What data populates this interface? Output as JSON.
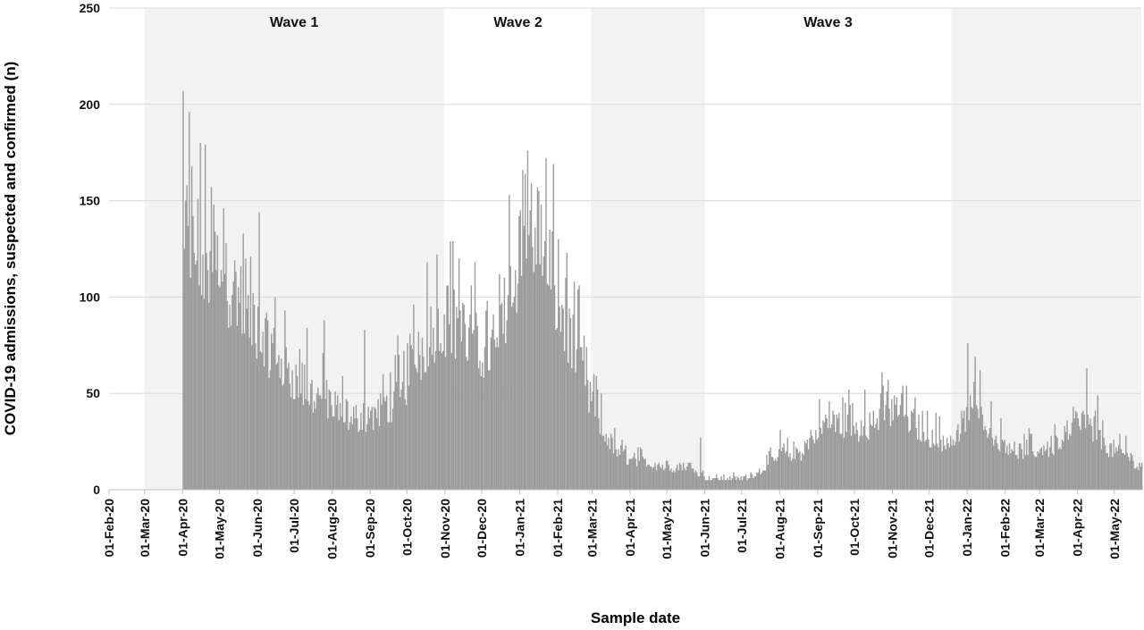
{
  "chart_data": {
    "type": "bar",
    "title": "",
    "xlabel": "Sample date",
    "ylabel": "COVID-19 admissions, suspected and confirmed (n)",
    "ylim": [
      0,
      250
    ],
    "yticks": [
      0,
      50,
      100,
      150,
      200,
      250
    ],
    "xlim": [
      "2020-02-01",
      "2022-05-23"
    ],
    "grid": "horizontal",
    "colors": {
      "bars": "#9a9a9a",
      "wave_band": "#f2f2f2",
      "grid": "#d9d9d9",
      "axis": "#bfbfbf"
    },
    "x_tick_dates": [
      "2020-02-01",
      "2020-03-01",
      "2020-04-01",
      "2020-05-01",
      "2020-06-01",
      "2020-07-01",
      "2020-08-01",
      "2020-09-01",
      "2020-10-01",
      "2020-11-01",
      "2020-12-01",
      "2021-01-01",
      "2021-02-01",
      "2021-03-01",
      "2021-04-01",
      "2021-05-01",
      "2021-06-01",
      "2021-07-01",
      "2021-08-01",
      "2021-09-01",
      "2021-10-01",
      "2021-11-01",
      "2021-12-01",
      "2022-01-01",
      "2022-02-01",
      "2022-03-01",
      "2022-04-01",
      "2022-05-01"
    ],
    "x_tick_labels": [
      "01-Feb-20",
      "01-Mar-20",
      "01-Apr-20",
      "01-May-20",
      "01-Jun-20",
      "01-Jul-20",
      "01-Aug-20",
      "01-Sep-20",
      "01-Oct-20",
      "01-Nov-20",
      "01-Dec-20",
      "01-Jan-21",
      "01-Feb-21",
      "01-Mar-21",
      "01-Apr-21",
      "01-May-21",
      "01-Jun-21",
      "01-Jul-21",
      "01-Aug-21",
      "01-Sep-21",
      "01-Oct-21",
      "01-Nov-21",
      "01-Dec-21",
      "01-Jan-22",
      "01-Feb-22",
      "01-Mar-22",
      "01-Apr-22",
      "01-May-22"
    ],
    "waves": [
      {
        "label": "Wave 1",
        "start": "2020-03-01",
        "end": "2020-10-31"
      },
      {
        "label": "Wave 2",
        "start": "2020-11-01",
        "end": "2021-02-28"
      },
      {
        "label": "Wave 3",
        "start": "2021-06-01",
        "end": "2021-12-19"
      }
    ],
    "shaded_bands": [
      {
        "start": "2020-03-01",
        "end": "2020-10-31"
      },
      {
        "start": "2021-02-28",
        "end": "2021-06-01"
      },
      {
        "start": "2021-12-19",
        "end": "2022-05-23"
      }
    ],
    "series": [
      {
        "start_date": "2020-04-01",
        "end_date": "2022-05-23",
        "weekly_baseline": [
          {
            "date": "2020-04-01",
            "value": 108
          },
          {
            "date": "2020-04-08",
            "value": 106
          },
          {
            "date": "2020-04-15",
            "value": 104
          },
          {
            "date": "2020-04-22",
            "value": 102
          },
          {
            "date": "2020-04-29",
            "value": 98
          },
          {
            "date": "2020-05-06",
            "value": 93
          },
          {
            "date": "2020-05-13",
            "value": 88
          },
          {
            "date": "2020-05-20",
            "value": 82
          },
          {
            "date": "2020-05-27",
            "value": 76
          },
          {
            "date": "2020-06-03",
            "value": 70
          },
          {
            "date": "2020-06-10",
            "value": 64
          },
          {
            "date": "2020-06-17",
            "value": 59
          },
          {
            "date": "2020-06-24",
            "value": 55
          },
          {
            "date": "2020-07-01",
            "value": 51
          },
          {
            "date": "2020-07-08",
            "value": 47
          },
          {
            "date": "2020-07-15",
            "value": 44
          },
          {
            "date": "2020-07-22",
            "value": 41
          },
          {
            "date": "2020-07-29",
            "value": 38
          },
          {
            "date": "2020-08-05",
            "value": 36
          },
          {
            "date": "2020-08-12",
            "value": 34
          },
          {
            "date": "2020-08-19",
            "value": 33
          },
          {
            "date": "2020-08-26",
            "value": 33
          },
          {
            "date": "2020-09-02",
            "value": 34
          },
          {
            "date": "2020-09-09",
            "value": 36
          },
          {
            "date": "2020-09-16",
            "value": 38
          },
          {
            "date": "2020-09-23",
            "value": 42
          },
          {
            "date": "2020-09-30",
            "value": 48
          },
          {
            "date": "2020-10-07",
            "value": 58
          },
          {
            "date": "2020-10-14",
            "value": 64
          },
          {
            "date": "2020-10-21",
            "value": 70
          },
          {
            "date": "2020-10-28",
            "value": 75
          },
          {
            "date": "2020-11-04",
            "value": 77
          },
          {
            "date": "2020-11-11",
            "value": 74
          },
          {
            "date": "2020-11-18",
            "value": 70
          },
          {
            "date": "2020-11-25",
            "value": 66
          },
          {
            "date": "2020-12-02",
            "value": 64
          },
          {
            "date": "2020-12-09",
            "value": 65
          },
          {
            "date": "2020-12-16",
            "value": 72
          },
          {
            "date": "2020-12-23",
            "value": 85
          },
          {
            "date": "2020-12-30",
            "value": 102
          },
          {
            "date": "2021-01-06",
            "value": 118
          },
          {
            "date": "2021-01-13",
            "value": 120
          },
          {
            "date": "2021-01-20",
            "value": 110
          },
          {
            "date": "2021-01-27",
            "value": 96
          },
          {
            "date": "2021-02-03",
            "value": 82
          },
          {
            "date": "2021-02-10",
            "value": 70
          },
          {
            "date": "2021-02-17",
            "value": 58
          },
          {
            "date": "2021-02-24",
            "value": 45
          },
          {
            "date": "2021-03-03",
            "value": 34
          },
          {
            "date": "2021-03-10",
            "value": 26
          },
          {
            "date": "2021-03-17",
            "value": 20
          },
          {
            "date": "2021-03-24",
            "value": 16
          },
          {
            "date": "2021-03-31",
            "value": 14
          },
          {
            "date": "2021-04-07",
            "value": 13
          },
          {
            "date": "2021-04-14",
            "value": 12
          },
          {
            "date": "2021-04-21",
            "value": 11
          },
          {
            "date": "2021-04-28",
            "value": 11
          },
          {
            "date": "2021-05-05",
            "value": 10
          },
          {
            "date": "2021-05-12",
            "value": 10
          },
          {
            "date": "2021-05-19",
            "value": 11
          },
          {
            "date": "2021-05-26",
            "value": 8
          },
          {
            "date": "2021-06-02",
            "value": 5
          },
          {
            "date": "2021-06-09",
            "value": 5
          },
          {
            "date": "2021-06-16",
            "value": 5
          },
          {
            "date": "2021-06-23",
            "value": 5
          },
          {
            "date": "2021-06-30",
            "value": 5
          },
          {
            "date": "2021-07-07",
            "value": 6
          },
          {
            "date": "2021-07-14",
            "value": 8
          },
          {
            "date": "2021-07-21",
            "value": 11
          },
          {
            "date": "2021-07-28",
            "value": 14
          },
          {
            "date": "2021-08-04",
            "value": 16
          },
          {
            "date": "2021-08-11",
            "value": 15
          },
          {
            "date": "2021-08-18",
            "value": 17
          },
          {
            "date": "2021-08-25",
            "value": 22
          },
          {
            "date": "2021-09-01",
            "value": 27
          },
          {
            "date": "2021-09-08",
            "value": 30
          },
          {
            "date": "2021-09-15",
            "value": 31
          },
          {
            "date": "2021-09-22",
            "value": 30
          },
          {
            "date": "2021-09-29",
            "value": 28
          },
          {
            "date": "2021-10-06",
            "value": 27
          },
          {
            "date": "2021-10-13",
            "value": 29
          },
          {
            "date": "2021-10-20",
            "value": 33
          },
          {
            "date": "2021-10-27",
            "value": 36
          },
          {
            "date": "2021-11-03",
            "value": 36
          },
          {
            "date": "2021-11-10",
            "value": 33
          },
          {
            "date": "2021-11-17",
            "value": 29
          },
          {
            "date": "2021-11-24",
            "value": 26
          },
          {
            "date": "2021-12-01",
            "value": 24
          },
          {
            "date": "2021-12-08",
            "value": 23
          },
          {
            "date": "2021-12-15",
            "value": 22
          },
          {
            "date": "2021-12-22",
            "value": 22
          },
          {
            "date": "2021-12-29",
            "value": 30
          },
          {
            "date": "2022-01-05",
            "value": 40
          },
          {
            "date": "2022-01-12",
            "value": 36
          },
          {
            "date": "2022-01-19",
            "value": 28
          },
          {
            "date": "2022-01-26",
            "value": 22
          },
          {
            "date": "2022-02-02",
            "value": 20
          },
          {
            "date": "2022-02-09",
            "value": 18
          },
          {
            "date": "2022-02-16",
            "value": 17
          },
          {
            "date": "2022-02-23",
            "value": 17
          },
          {
            "date": "2022-03-02",
            "value": 18
          },
          {
            "date": "2022-03-09",
            "value": 18
          },
          {
            "date": "2022-03-16",
            "value": 20
          },
          {
            "date": "2022-03-23",
            "value": 24
          },
          {
            "date": "2022-03-30",
            "value": 30
          },
          {
            "date": "2022-04-06",
            "value": 32
          },
          {
            "date": "2022-04-13",
            "value": 27
          },
          {
            "date": "2022-04-20",
            "value": 22
          },
          {
            "date": "2022-04-27",
            "value": 18
          },
          {
            "date": "2022-05-04",
            "value": 17
          },
          {
            "date": "2022-05-11",
            "value": 15
          },
          {
            "date": "2022-05-18",
            "value": 12
          },
          {
            "date": "2022-05-23",
            "value": 10
          }
        ],
        "peaks": [
          {
            "date": "2020-04-01",
            "value": 207
          },
          {
            "date": "2020-04-06",
            "value": 196
          },
          {
            "date": "2020-04-04",
            "value": 158
          },
          {
            "date": "2020-04-08",
            "value": 168
          },
          {
            "date": "2020-04-13",
            "value": 151
          },
          {
            "date": "2020-04-26",
            "value": 148
          },
          {
            "date": "2020-05-04",
            "value": 146
          },
          {
            "date": "2020-05-22",
            "value": 120
          },
          {
            "date": "2020-06-02",
            "value": 144
          },
          {
            "date": "2020-06-15",
            "value": 100
          },
          {
            "date": "2020-07-11",
            "value": 84
          },
          {
            "date": "2020-07-25",
            "value": 88
          },
          {
            "date": "2020-08-27",
            "value": 83
          },
          {
            "date": "2020-09-23",
            "value": 80
          },
          {
            "date": "2020-10-06",
            "value": 96
          },
          {
            "date": "2020-10-17",
            "value": 118
          },
          {
            "date": "2020-10-25",
            "value": 122
          },
          {
            "date": "2020-11-05",
            "value": 129
          },
          {
            "date": "2020-11-12",
            "value": 120
          },
          {
            "date": "2020-12-23",
            "value": 153
          },
          {
            "date": "2021-01-03",
            "value": 166
          },
          {
            "date": "2021-01-05",
            "value": 164
          },
          {
            "date": "2021-01-10",
            "value": 159
          },
          {
            "date": "2021-01-18",
            "value": 148
          },
          {
            "date": "2021-01-27",
            "value": 134
          },
          {
            "date": "2021-02-07",
            "value": 110
          },
          {
            "date": "2021-02-18",
            "value": 106
          },
          {
            "date": "2021-03-04",
            "value": 59
          },
          {
            "date": "2021-05-28",
            "value": 27
          },
          {
            "date": "2021-08-01",
            "value": 31
          },
          {
            "date": "2021-09-26",
            "value": 52
          },
          {
            "date": "2021-10-09",
            "value": 52
          },
          {
            "date": "2021-10-27",
            "value": 51
          },
          {
            "date": "2021-11-08",
            "value": 50
          },
          {
            "date": "2022-01-01",
            "value": 76
          },
          {
            "date": "2022-01-06",
            "value": 56
          },
          {
            "date": "2022-02-20",
            "value": 32
          },
          {
            "date": "2022-03-13",
            "value": 34
          },
          {
            "date": "2022-04-08",
            "value": 63
          },
          {
            "date": "2022-04-17",
            "value": 49
          },
          {
            "date": "2022-05-10",
            "value": 28
          }
        ]
      }
    ]
  }
}
